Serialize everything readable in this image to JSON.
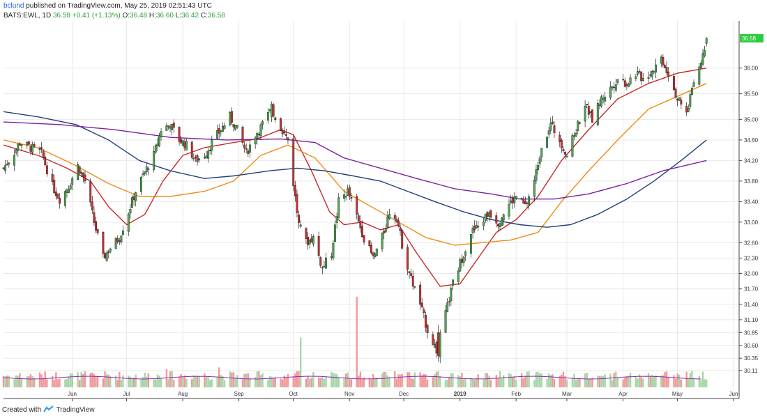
{
  "header": {
    "user": "bclund",
    "published_text": "published on TradingView.com, May 25, 2019 02:51:43 UTC",
    "symbol": "BATS:EWL, 1D",
    "last": "36.58",
    "change": "+0.41 (+1.13%)",
    "o_label": "O:",
    "o_value": "36.48",
    "h_label": "H:",
    "h_value": "36.60",
    "l_label": "L:",
    "l_value": "36.42",
    "c_label": "C:",
    "c_value": "36.58"
  },
  "footer": {
    "created_with": "Created with",
    "brand": "TradingView"
  },
  "colors": {
    "up": "#4caf50",
    "down": "#d32f2f",
    "ma_fast": "#c62828",
    "ma_mid": "#ef8a17",
    "ma_slow": "#1f3f7a",
    "ma_long": "#7b1fa2",
    "grid": "#e9e9e9"
  },
  "chart_data": {
    "type": "candlestick",
    "symbol": "BATS:EWL",
    "interval": "1D",
    "ylim": [
      30.0,
      36.85
    ],
    "y_ticks": [
      "36.00",
      "35.50",
      "35.00",
      "34.60",
      "34.20",
      "33.80",
      "33.40",
      "33.00",
      "32.60",
      "32.30",
      "32.00",
      "31.70",
      "31.40",
      "31.10",
      "30.85",
      "30.60",
      "30.35",
      "30.11"
    ],
    "price_label": "36.58",
    "grid": true,
    "x_labels": [
      {
        "label": "Jun",
        "x": "2018-06"
      },
      {
        "label": "Jul",
        "x": "2018-07"
      },
      {
        "label": "Aug",
        "x": "2018-08"
      },
      {
        "label": "Sep",
        "x": "2018-09"
      },
      {
        "label": "Oct",
        "x": "2018-10"
      },
      {
        "label": "Nov",
        "x": "2018-11"
      },
      {
        "label": "Dec",
        "x": "2018-12"
      },
      {
        "label": "2019",
        "x": "2019-01"
      },
      {
        "label": "Feb",
        "x": "2019-02"
      },
      {
        "label": "Mar",
        "x": "2019-03"
      },
      {
        "label": "Apr",
        "x": "2019-04"
      },
      {
        "label": "May",
        "x": "2019-05"
      },
      {
        "label": "Jun",
        "x": "2019-06"
      }
    ],
    "close_path": [
      [
        "2018-05-01",
        34.05
      ],
      [
        "2018-05-06",
        34.3
      ],
      [
        "2018-05-10",
        34.55
      ],
      [
        "2018-05-16",
        34.45
      ],
      [
        "2018-05-22",
        34.35
      ],
      [
        "2018-05-28",
        33.7
      ],
      [
        "2018-06-01",
        33.45
      ],
      [
        "2018-06-06",
        33.7
      ],
      [
        "2018-06-11",
        34.1
      ],
      [
        "2018-06-15",
        33.8
      ],
      [
        "2018-06-20",
        33.0
      ],
      [
        "2018-06-25",
        32.3
      ],
      [
        "2018-06-29",
        32.5
      ],
      [
        "2018-07-04",
        32.7
      ],
      [
        "2018-07-09",
        33.2
      ],
      [
        "2018-07-13",
        33.6
      ],
      [
        "2018-07-17",
        33.9
      ],
      [
        "2018-07-23",
        34.3
      ],
      [
        "2018-07-27",
        34.8
      ],
      [
        "2018-08-01",
        34.9
      ],
      [
        "2018-08-06",
        34.6
      ],
      [
        "2018-08-10",
        34.5
      ],
      [
        "2018-08-15",
        34.2
      ],
      [
        "2018-08-20",
        34.3
      ],
      [
        "2018-08-24",
        34.55
      ],
      [
        "2018-08-29",
        34.8
      ],
      [
        "2018-09-03",
        35.05
      ],
      [
        "2018-09-07",
        34.8
      ],
      [
        "2018-09-12",
        34.35
      ],
      [
        "2018-09-17",
        34.7
      ],
      [
        "2018-09-21",
        34.9
      ],
      [
        "2018-09-26",
        35.2
      ],
      [
        "2018-10-01",
        34.85
      ],
      [
        "2018-10-05",
        34.6
      ],
      [
        "2018-10-10",
        33.2
      ],
      [
        "2018-10-15",
        32.6
      ],
      [
        "2018-10-19",
        32.7
      ],
      [
        "2018-10-24",
        32.1
      ],
      [
        "2018-10-29",
        32.4
      ],
      [
        "2018-11-02",
        33.4
      ],
      [
        "2018-11-07",
        33.6
      ],
      [
        "2018-11-12",
        33.1
      ],
      [
        "2018-11-16",
        32.7
      ],
      [
        "2018-11-21",
        32.3
      ],
      [
        "2018-11-26",
        32.7
      ],
      [
        "2018-11-30",
        33.2
      ],
      [
        "2018-12-04",
        33.1
      ],
      [
        "2018-12-08",
        32.4
      ],
      [
        "2018-12-12",
        31.9
      ],
      [
        "2018-12-17",
        31.4
      ],
      [
        "2018-12-21",
        30.9
      ],
      [
        "2018-12-26",
        30.5
      ],
      [
        "2018-12-31",
        31.2
      ],
      [
        "2019-01-04",
        31.8
      ],
      [
        "2019-01-09",
        32.3
      ],
      [
        "2019-01-14",
        32.8
      ],
      [
        "2019-01-18",
        32.9
      ],
      [
        "2019-01-24",
        33.2
      ],
      [
        "2019-01-29",
        33.0
      ],
      [
        "2019-02-03",
        33.3
      ],
      [
        "2019-02-08",
        33.5
      ],
      [
        "2019-02-13",
        33.3
      ],
      [
        "2019-02-18",
        33.8
      ],
      [
        "2019-02-22",
        34.5
      ],
      [
        "2019-02-27",
        34.9
      ],
      [
        "2019-03-04",
        34.6
      ],
      [
        "2019-03-08",
        34.3
      ],
      [
        "2019-03-13",
        34.8
      ],
      [
        "2019-03-18",
        35.3
      ],
      [
        "2019-03-22",
        35.0
      ],
      [
        "2019-03-27",
        35.4
      ],
      [
        "2019-04-01",
        35.6
      ],
      [
        "2019-04-05",
        35.8
      ],
      [
        "2019-04-10",
        35.7
      ],
      [
        "2019-04-15",
        35.9
      ],
      [
        "2019-04-19",
        35.8
      ],
      [
        "2019-04-24",
        35.95
      ],
      [
        "2019-04-29",
        36.2
      ],
      [
        "2019-05-03",
        35.9
      ],
      [
        "2019-05-08",
        35.4
      ],
      [
        "2019-05-13",
        35.1
      ],
      [
        "2019-05-17",
        35.8
      ],
      [
        "2019-05-21",
        36.1
      ],
      [
        "2019-05-24",
        36.58
      ]
    ],
    "special_candles": [
      {
        "date": "2018-12-27",
        "open": 30.85,
        "high": 31.0,
        "low": 30.28,
        "close": 30.4
      },
      {
        "date": "2018-09-26",
        "open": 35.05,
        "high": 35.35,
        "low": 34.95,
        "close": 35.3
      },
      {
        "date": "2019-05-24",
        "open": 36.48,
        "high": 36.6,
        "low": 36.42,
        "close": 36.58
      }
    ],
    "series": [
      {
        "color": "#c62828",
        "values": [
          [
            "2018-05-01",
            34.5
          ],
          [
            "2018-05-20",
            34.3
          ],
          [
            "2018-06-05",
            34.05
          ],
          [
            "2018-06-18",
            33.8
          ],
          [
            "2018-06-28",
            33.3
          ],
          [
            "2018-07-08",
            32.95
          ],
          [
            "2018-07-18",
            33.15
          ],
          [
            "2018-07-28",
            33.8
          ],
          [
            "2018-08-08",
            34.3
          ],
          [
            "2018-08-20",
            34.45
          ],
          [
            "2018-09-05",
            34.55
          ],
          [
            "2018-09-18",
            34.62
          ],
          [
            "2018-10-01",
            34.8
          ],
          [
            "2018-10-08",
            34.7
          ],
          [
            "2018-10-18",
            34.0
          ],
          [
            "2018-10-28",
            33.2
          ],
          [
            "2018-11-05",
            32.95
          ],
          [
            "2018-11-15",
            33.0
          ],
          [
            "2018-11-25",
            32.85
          ],
          [
            "2018-12-05",
            32.95
          ],
          [
            "2018-12-15",
            32.4
          ],
          [
            "2018-12-28",
            31.75
          ],
          [
            "2019-01-08",
            31.8
          ],
          [
            "2019-01-18",
            32.3
          ],
          [
            "2019-01-28",
            32.8
          ],
          [
            "2019-02-08",
            33.05
          ],
          [
            "2019-02-20",
            33.5
          ],
          [
            "2019-03-05",
            34.2
          ],
          [
            "2019-03-20",
            34.8
          ],
          [
            "2019-04-05",
            35.4
          ],
          [
            "2019-04-22",
            35.7
          ],
          [
            "2019-05-08",
            35.9
          ],
          [
            "2019-05-24",
            36.0
          ]
        ]
      },
      {
        "color": "#ef8a17",
        "values": [
          [
            "2018-05-01",
            34.6
          ],
          [
            "2018-05-20",
            34.45
          ],
          [
            "2018-06-10",
            34.1
          ],
          [
            "2018-06-28",
            33.75
          ],
          [
            "2018-07-15",
            33.5
          ],
          [
            "2018-08-01",
            33.5
          ],
          [
            "2018-08-20",
            33.6
          ],
          [
            "2018-09-05",
            33.8
          ],
          [
            "2018-09-20",
            34.3
          ],
          [
            "2018-10-05",
            34.5
          ],
          [
            "2018-10-20",
            34.25
          ],
          [
            "2018-11-05",
            33.6
          ],
          [
            "2018-11-20",
            33.3
          ],
          [
            "2018-12-05",
            33.0
          ],
          [
            "2018-12-20",
            32.7
          ],
          [
            "2019-01-05",
            32.55
          ],
          [
            "2019-01-20",
            32.6
          ],
          [
            "2019-02-05",
            32.65
          ],
          [
            "2019-02-20",
            32.8
          ],
          [
            "2019-03-05",
            33.4
          ],
          [
            "2019-03-20",
            34.0
          ],
          [
            "2019-04-05",
            34.6
          ],
          [
            "2019-04-22",
            35.2
          ],
          [
            "2019-05-08",
            35.45
          ],
          [
            "2019-05-24",
            35.7
          ]
        ]
      },
      {
        "color": "#1f3f7a",
        "values": [
          [
            "2018-05-01",
            35.15
          ],
          [
            "2018-05-20",
            35.05
          ],
          [
            "2018-06-10",
            34.9
          ],
          [
            "2018-06-28",
            34.6
          ],
          [
            "2018-07-15",
            34.2
          ],
          [
            "2018-08-01",
            34.0
          ],
          [
            "2018-08-20",
            33.85
          ],
          [
            "2018-09-05",
            33.9
          ],
          [
            "2018-09-25",
            34.0
          ],
          [
            "2018-10-10",
            34.05
          ],
          [
            "2018-10-25",
            34.0
          ],
          [
            "2018-11-10",
            33.9
          ],
          [
            "2018-11-25",
            33.8
          ],
          [
            "2018-12-10",
            33.6
          ],
          [
            "2018-12-25",
            33.4
          ],
          [
            "2019-01-10",
            33.2
          ],
          [
            "2019-01-25",
            33.05
          ],
          [
            "2019-02-10",
            32.95
          ],
          [
            "2019-02-25",
            32.9
          ],
          [
            "2019-03-10",
            32.95
          ],
          [
            "2019-03-25",
            33.15
          ],
          [
            "2019-04-10",
            33.45
          ],
          [
            "2019-04-25",
            33.8
          ],
          [
            "2019-05-10",
            34.2
          ],
          [
            "2019-05-24",
            34.6
          ]
        ]
      },
      {
        "color": "#7b1fa2",
        "values": [
          [
            "2018-05-01",
            34.95
          ],
          [
            "2018-06-01",
            34.9
          ],
          [
            "2018-07-01",
            34.8
          ],
          [
            "2018-08-01",
            34.65
          ],
          [
            "2018-09-01",
            34.6
          ],
          [
            "2018-10-01",
            34.62
          ],
          [
            "2018-10-20",
            34.55
          ],
          [
            "2018-11-05",
            34.25
          ],
          [
            "2018-11-25",
            34.05
          ],
          [
            "2018-12-15",
            33.85
          ],
          [
            "2019-01-05",
            33.65
          ],
          [
            "2019-01-25",
            33.55
          ],
          [
            "2019-02-10",
            33.45
          ],
          [
            "2019-03-01",
            33.45
          ],
          [
            "2019-03-20",
            33.55
          ],
          [
            "2019-04-10",
            33.75
          ],
          [
            "2019-04-30",
            34.0
          ],
          [
            "2019-05-24",
            34.2
          ]
        ]
      }
    ],
    "volume_spikes": [
      {
        "date": "2018-10-12",
        "ratio": 0.55,
        "dir": "up"
      },
      {
        "date": "2018-11-12",
        "ratio": 1.0,
        "dir": "down"
      },
      {
        "date": "2018-07-30",
        "ratio": 0.2,
        "dir": "down"
      },
      {
        "date": "2018-08-28",
        "ratio": 0.22,
        "dir": "down"
      },
      {
        "date": "2018-12-27",
        "ratio": 0.18,
        "dir": "up"
      }
    ]
  }
}
